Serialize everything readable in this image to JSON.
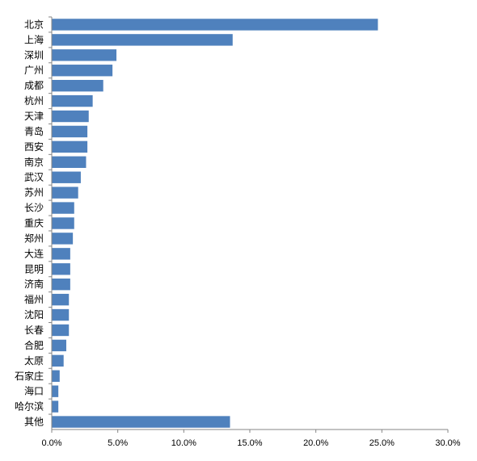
{
  "chart_data": {
    "type": "bar",
    "orientation": "horizontal",
    "categories": [
      "北京",
      "上海",
      "深圳",
      "广州",
      "成都",
      "杭州",
      "天津",
      "青岛",
      "西安",
      "南京",
      "武汉",
      "苏州",
      "长沙",
      "重庆",
      "郑州",
      "大连",
      "昆明",
      "济南",
      "福州",
      "沈阳",
      "长春",
      "合肥",
      "太原",
      "石家庄",
      "海口",
      "哈尔滨",
      "其他"
    ],
    "values": [
      24.7,
      13.7,
      4.9,
      4.6,
      3.9,
      3.1,
      2.8,
      2.7,
      2.7,
      2.6,
      2.2,
      2.0,
      1.7,
      1.7,
      1.6,
      1.4,
      1.4,
      1.4,
      1.3,
      1.3,
      1.3,
      1.1,
      0.9,
      0.6,
      0.5,
      0.5,
      13.5
    ],
    "xlim": [
      0,
      30
    ],
    "xticks": [
      0,
      5,
      10,
      15,
      20,
      25,
      30
    ],
    "xtick_labels": [
      "0.0%",
      "5.0%",
      "10.0%",
      "15.0%",
      "20.0%",
      "25.0%",
      "30.0%"
    ],
    "title": "",
    "xlabel": "",
    "ylabel": "",
    "grid": false,
    "legend": "none",
    "bar_color": "#4F81BD",
    "axis_color": "#868686"
  }
}
